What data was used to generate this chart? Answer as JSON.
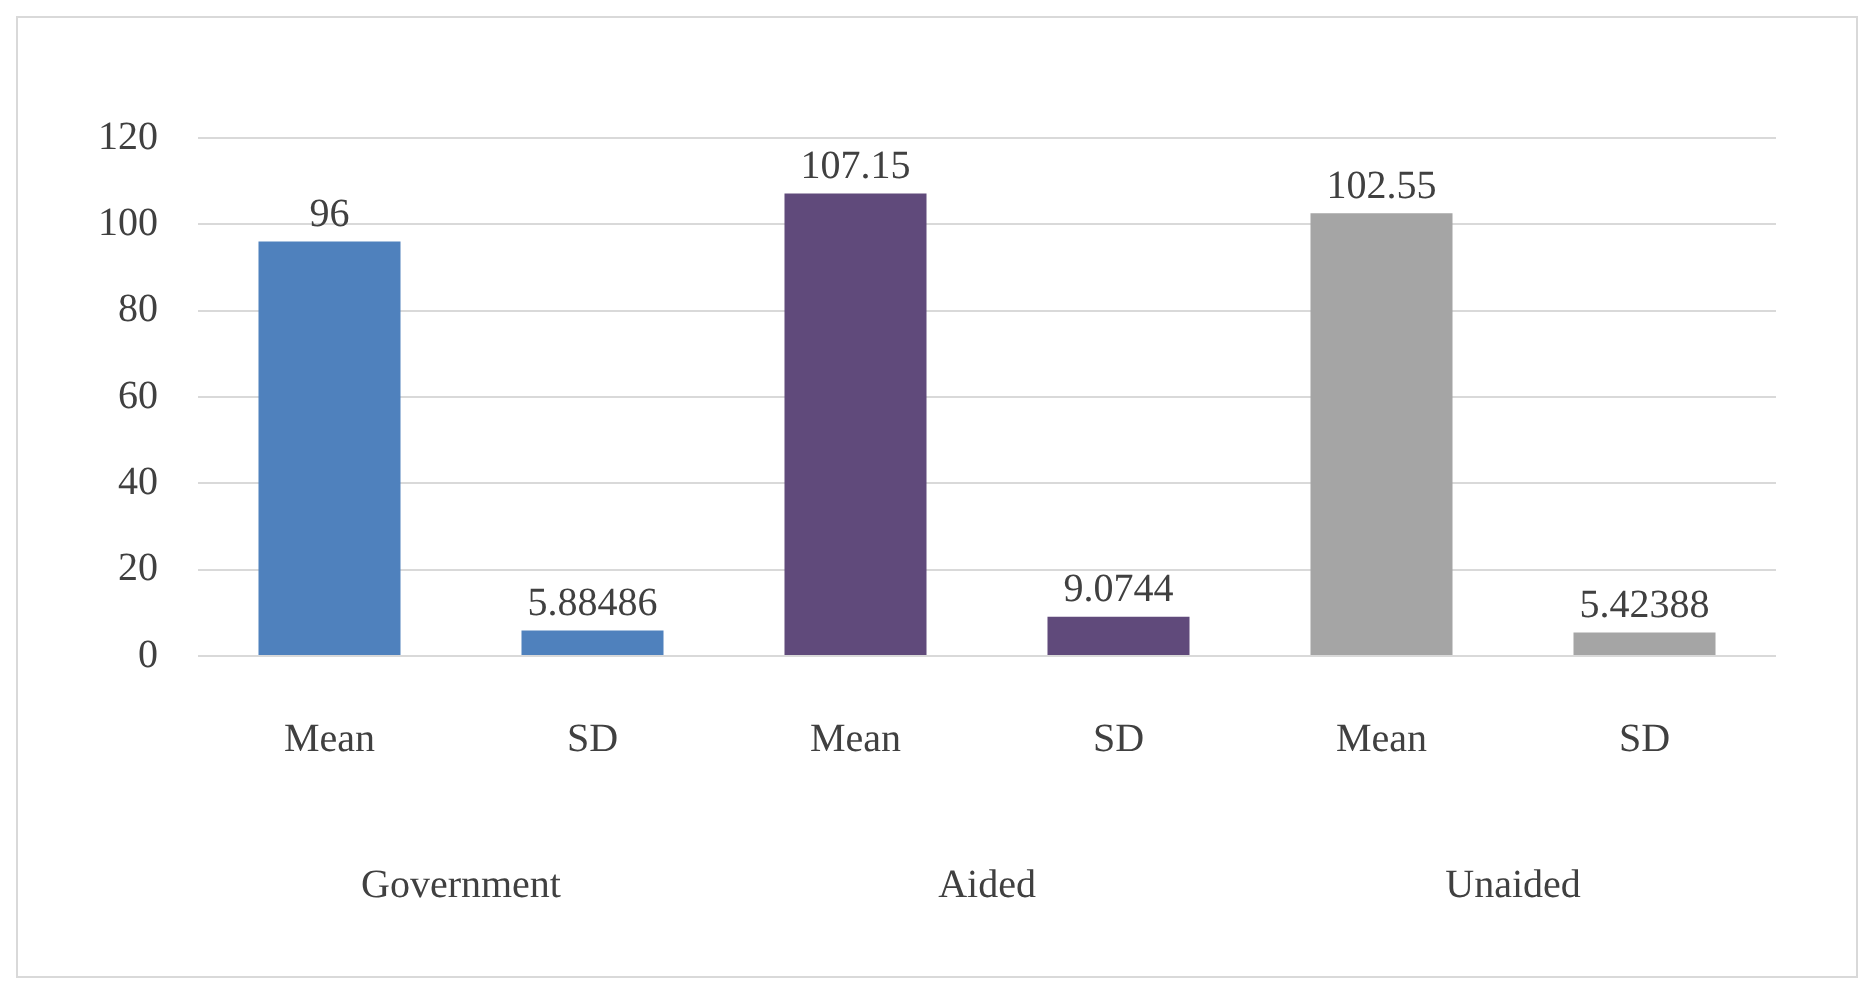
{
  "chart_data": {
    "type": "bar",
    "categories": [
      "Mean",
      "SD",
      "Mean",
      "SD",
      "Mean",
      "SD"
    ],
    "values": [
      96,
      5.88486,
      107.15,
      9.0744,
      102.55,
      5.42388
    ],
    "colors": [
      "#4f81bd",
      "#4f81bd",
      "#604a7b",
      "#604a7b",
      "#a5a5a5",
      "#a5a5a5"
    ],
    "ylim": [
      0,
      120
    ],
    "yticks": [
      0,
      20,
      40,
      60,
      80,
      100,
      120
    ],
    "grid": "y",
    "data_labels": true,
    "annotations": [
      "Government",
      "Aided",
      "Unaided"
    ]
  }
}
